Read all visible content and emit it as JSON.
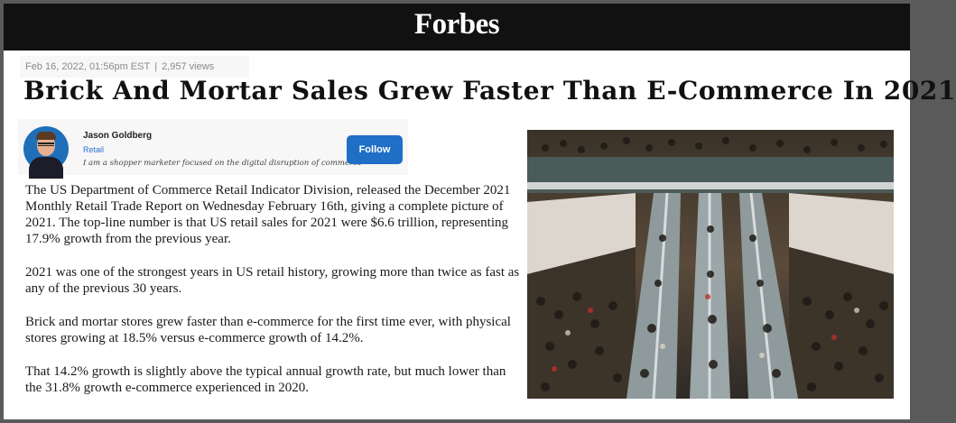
{
  "masthead": {
    "logo_text": "Forbes"
  },
  "meta": {
    "date": "Feb 16, 2022, 01:56pm EST",
    "separator": "|",
    "views": "2,957 views"
  },
  "headline": "Brick And Mortar Sales Grew Faster Than E-Commerce In 2021",
  "author": {
    "name": "Jason Goldberg",
    "section": "Retail",
    "bio": "I am a shopper marketer focused on the digital disruption of commerce",
    "follow_label": "Follow"
  },
  "paragraphs": [
    "The US Department of Commerce Retail Indicator Division, released the December 2021 Monthly Retail Trade Report on Wednesday February 16th, giving a complete picture of 2021. The top-line number is that US retail sales for 2021 were $6.6 trillion, representing 17.9% growth from the previous year.",
    "2021 was one of the strongest years in US retail history, growing more than twice as fast as any of the previous 30 years.",
    "Brick and mortar stores grew faster than e-commerce for the first time ever, with physical stores growing at 18.5% versus e-commerce growth of 14.2%.",
    "That 14.2% growth is slightly above the typical annual growth rate, but much lower than the 31.8% growth e-commerce experienced in 2020."
  ],
  "colors": {
    "masthead": "#111111",
    "follow_button": "#1f6fc6",
    "section_link": "#2a6fd1"
  },
  "photo": {
    "subject": "crowded shopping mall escalators"
  }
}
